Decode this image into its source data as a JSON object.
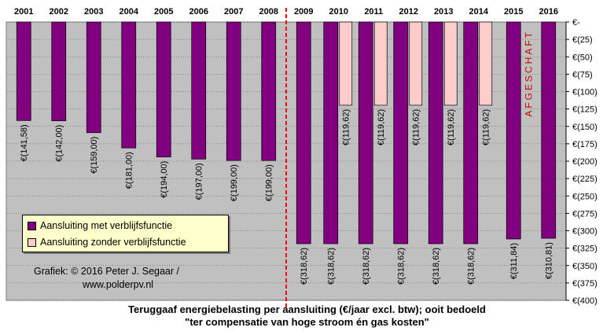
{
  "chart_data": {
    "type": "bar",
    "categories": [
      "2001",
      "2002",
      "2003",
      "2004",
      "2005",
      "2006",
      "2007",
      "2008",
      "2009",
      "2010",
      "2011",
      "2012",
      "2013",
      "2014",
      "2015",
      "2016"
    ],
    "series": [
      {
        "name": "Aansluiting met verblijfsfunctie",
        "color": "#800080",
        "values": [
          141.58,
          142.0,
          159.0,
          181.0,
          194.0,
          197.0,
          199.0,
          199.0,
          318.62,
          318.62,
          318.62,
          318.62,
          318.62,
          318.62,
          311.84,
          310.81
        ],
        "labels": [
          "€(141,58)",
          "€(142,00)",
          "€(159,00)",
          "€(181,00)",
          "€(194,00)",
          "€(197,00)",
          "€(199,00)",
          "€(199,00)",
          "€(318,62)",
          "€(318,62)",
          "€(318,62)",
          "€(318,62)",
          "€(318,62)",
          "€(318,62)",
          "€(311,84)",
          "€(310,81)"
        ]
      },
      {
        "name": "Aansluiting zonder verblijfsfunctie",
        "color": "#ffcccc",
        "values": [
          null,
          null,
          null,
          null,
          null,
          null,
          null,
          null,
          null,
          119.62,
          119.62,
          119.62,
          119.62,
          119.62,
          null,
          null
        ],
        "labels": [
          "",
          "",
          "",
          "",
          "",
          "",
          "",
          "",
          "",
          "€(119,62)",
          "€(119,62)",
          "€(119,62)",
          "€(119,62)",
          "€(119,62)",
          "",
          ""
        ]
      }
    ],
    "ylim": [
      0,
      400
    ],
    "yticks": [
      "€-",
      "€(25)",
      "€(50)",
      "€(75)",
      "€(100)",
      "€(125)",
      "€(150)",
      "€(175)",
      "€(200)",
      "€(225)",
      "€(250)",
      "€(275)",
      "€(300)",
      "€(325)",
      "€(350)",
      "€(375)",
      "€(400)"
    ],
    "y_axis_side": "right",
    "x_axis_position": "top",
    "grid": true,
    "plot_background": "#c0c0c0",
    "divider_after": "2008",
    "divider_color": "#ff0000",
    "annotation": {
      "category": "2015",
      "text": "AFGESCHAFT",
      "color": "#cc0000"
    },
    "legend": {
      "placement": "bottom-left",
      "items": [
        "Aansluiting met verblijfsfunctie",
        "Aansluiting zonder verblijfsfunctie"
      ]
    },
    "credit": [
      "Grafiek:  © 2016 Peter J. Segaar /",
      "www.polderpv.nl"
    ],
    "caption": [
      "Teruggaaf energiebelasting  per aansluiting (€/jaar excl. btw); ooit bedoeld",
      "\"ter compensatie van hoge stroom én gas kosten\""
    ]
  }
}
